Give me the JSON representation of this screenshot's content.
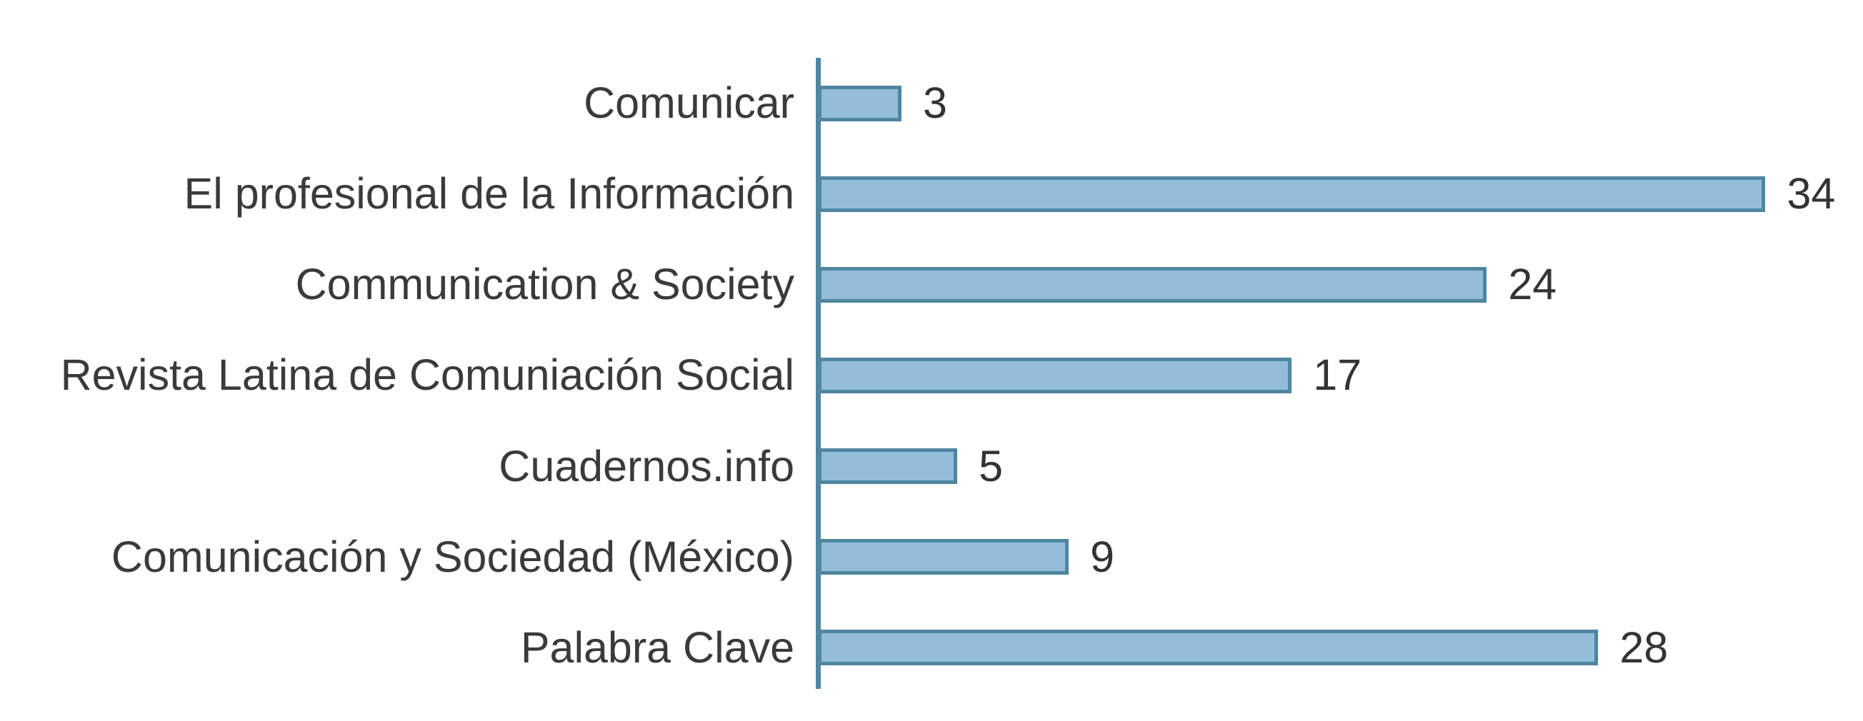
{
  "chart_data": {
    "type": "bar",
    "orientation": "horizontal",
    "title": "",
    "xlabel": "",
    "ylabel": "",
    "categories": [
      "Comunicar",
      "El profesional de la Información",
      "Communication & Society",
      "Revista Latina de Comuniación Social",
      "Cuadernos.info",
      "Comunicación y Sociedad (México)",
      "Palabra Clave"
    ],
    "values": [
      3,
      34,
      24,
      17,
      5,
      9,
      28
    ],
    "value_labels_shown": true,
    "xlim": [
      0,
      37.5
    ],
    "grid": false,
    "legend": false,
    "colors": {
      "bar_fill": "#93bdd9",
      "bar_border": "#4e86a1",
      "axis_line": "#4f86a1",
      "category_text": "#3a3a3a",
      "value_text": "#333333"
    }
  }
}
